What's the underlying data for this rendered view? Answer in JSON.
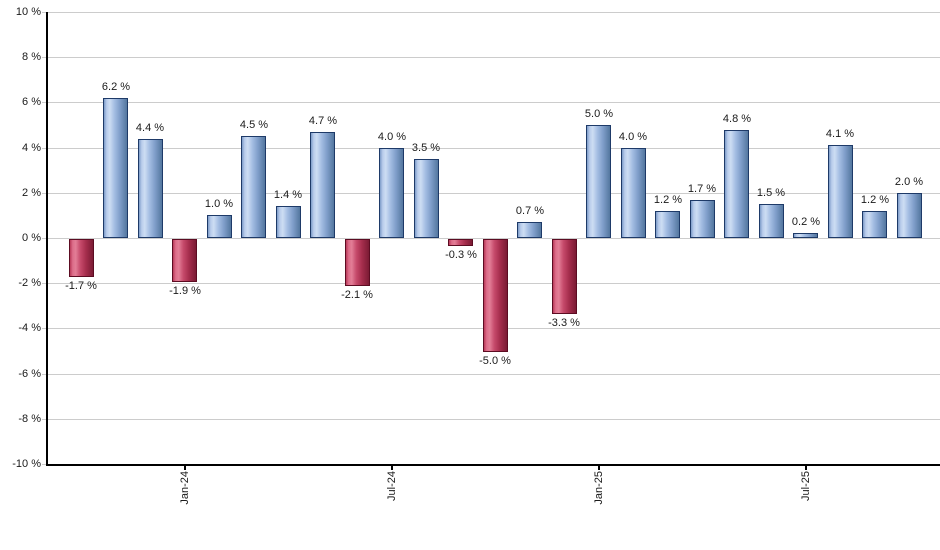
{
  "chart_data": {
    "type": "bar",
    "title": "",
    "description": "Monthly returns bar chart; blue bars are positive months, red bars are negative months",
    "values": [
      -1.7,
      6.2,
      4.4,
      -1.9,
      1.0,
      4.5,
      1.4,
      4.7,
      -2.1,
      4.0,
      3.5,
      -0.3,
      -5.0,
      0.7,
      -3.3,
      5.0,
      4.0,
      1.2,
      1.7,
      4.8,
      1.5,
      0.2,
      4.1,
      1.2,
      2.0
    ],
    "value_labels": [
      "-1.7 %",
      "6.2 %",
      "4.4 %",
      "-1.9 %",
      "1.0 %",
      "4.5 %",
      "1.4 %",
      "4.7 %",
      "-2.1 %",
      "4.0 %",
      "3.5 %",
      "-0.3 %",
      "-5.0 %",
      "0.7 %",
      "-3.3 %",
      "5.0 %",
      "4.0 %",
      "1.2 %",
      "1.7 %",
      "4.8 %",
      "1.5 %",
      "0.2 %",
      "4.1 %",
      "1.2 %",
      "2.0 %"
    ],
    "value_suffix": " %",
    "x_ticks": [
      {
        "bar_index": 3,
        "label": "Jan-24"
      },
      {
        "bar_index": 9,
        "label": "Jul-24"
      },
      {
        "bar_index": 15,
        "label": "Jan-25"
      },
      {
        "bar_index": 21,
        "label": "Jul-25"
      }
    ],
    "y_tick_labels": [
      "10 %",
      "8 %",
      "6 %",
      "4 %",
      "2 %",
      "0 %",
      "-2 %",
      "-4 %",
      "-6 %",
      "-8 %",
      "-10 %"
    ],
    "y_tick_values": [
      10,
      8,
      6,
      4,
      2,
      0,
      -2,
      -4,
      -6,
      -8,
      -10
    ],
    "ylim": [
      -10,
      10
    ],
    "grid": "horizontal",
    "legend": "none",
    "colors": {
      "positive_fill_stops": [
        [
          0,
          "#7d9cc9"
        ],
        [
          12,
          "#b9cdeb"
        ],
        [
          25,
          "#cdddf3"
        ],
        [
          45,
          "#a5bee3"
        ],
        [
          70,
          "#7e9dc9"
        ],
        [
          100,
          "#54779f"
        ]
      ],
      "positive_border": "#1e3a68",
      "negative_fill_stops": [
        [
          0,
          "#b93a5a"
        ],
        [
          12,
          "#dd6e8a"
        ],
        [
          25,
          "#e27d96"
        ],
        [
          45,
          "#c64a6b"
        ],
        [
          70,
          "#a52d4c"
        ],
        [
          100,
          "#7b1b34"
        ]
      ],
      "negative_border": "#5c0c22",
      "gridline": "#cccccc",
      "axis": "#000000",
      "label": "#1a1a1a",
      "background": "#ffffff"
    }
  }
}
